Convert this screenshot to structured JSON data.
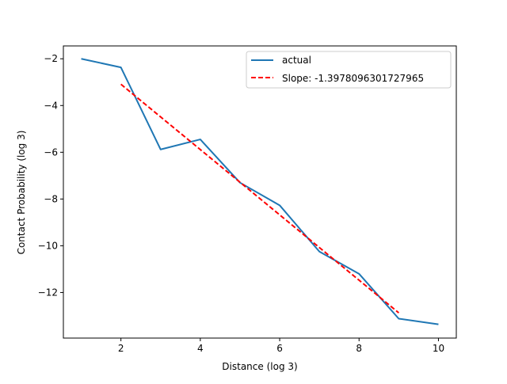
{
  "chart_data": {
    "type": "line",
    "xlabel": "Distance (log 3)",
    "ylabel": "Contact Probability (log 3)",
    "xlim": [
      0.55,
      10.45
    ],
    "ylim": [
      -13.95,
      -1.45
    ],
    "xticks": [
      2,
      4,
      6,
      8,
      10
    ],
    "xtick_labels": [
      "2",
      "4",
      "6",
      "8",
      "10"
    ],
    "yticks": [
      -12,
      -10,
      -8,
      -6,
      -4,
      -2
    ],
    "ytick_labels": [
      "−12",
      "−10",
      "−8",
      "−6",
      "−4",
      "−2"
    ],
    "grid": false,
    "legend_position": "top-right",
    "series": [
      {
        "name": "actual",
        "color": "#1f77b4",
        "line_style": "solid",
        "x": [
          1,
          2,
          3,
          4,
          5,
          6,
          7,
          8,
          9,
          10
        ],
        "y": [
          -2.0,
          -2.37,
          -5.88,
          -5.45,
          -7.3,
          -8.27,
          -10.25,
          -11.2,
          -13.12,
          -13.36
        ]
      },
      {
        "name": "Slope: -1.3978096301727965",
        "color": "#ff0000",
        "line_style": "dashed",
        "x": [
          2,
          9
        ],
        "y": [
          -3.09,
          -12.87
        ]
      }
    ]
  }
}
